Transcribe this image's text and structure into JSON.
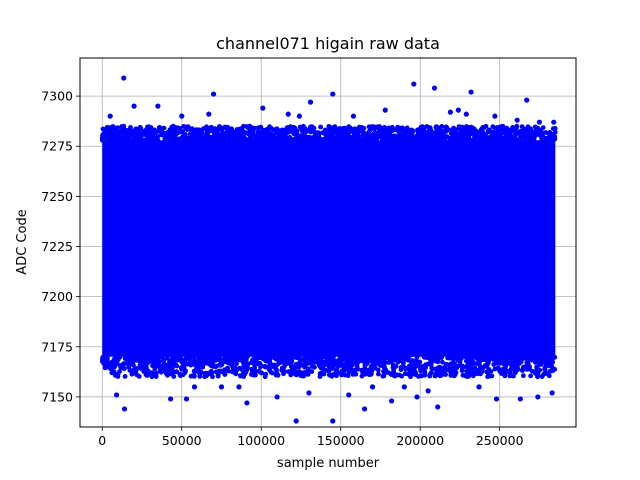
{
  "chart_data": {
    "type": "scatter",
    "title": "channel071 higain raw data",
    "xlabel": "sample number",
    "ylabel": "ADC Code",
    "xlim": [
      -14000,
      298000
    ],
    "ylim": [
      7135,
      7319
    ],
    "x_ticks": [
      0,
      50000,
      100000,
      150000,
      200000,
      250000
    ],
    "y_ticks": [
      7150,
      7175,
      7200,
      7225,
      7250,
      7275,
      7300
    ],
    "grid": true,
    "marker_color": "#0000ff",
    "sample_count": 285000,
    "bulk_band": {
      "x_range": [
        0,
        285000
      ],
      "y_range": [
        7160,
        7285
      ],
      "dense_core": [
        7170,
        7278
      ]
    },
    "series": [
      {
        "points": [
          [
            13500,
            7309
          ],
          [
            70000,
            7301
          ],
          [
            145000,
            7301
          ],
          [
            196000,
            7306
          ],
          [
            209000,
            7304
          ],
          [
            232000,
            7302
          ],
          [
            267000,
            7298
          ],
          [
            131000,
            7297
          ],
          [
            20000,
            7295
          ],
          [
            35000,
            7295
          ],
          [
            101000,
            7294
          ],
          [
            178000,
            7293
          ],
          [
            224000,
            7293
          ],
          [
            219000,
            7292
          ],
          [
            5000,
            7290
          ],
          [
            50000,
            7290
          ],
          [
            67000,
            7291
          ],
          [
            117000,
            7291
          ],
          [
            124000,
            7290
          ],
          [
            158000,
            7290
          ],
          [
            229000,
            7291
          ],
          [
            247000,
            7290
          ],
          [
            261000,
            7288
          ],
          [
            275000,
            7287
          ],
          [
            284000,
            7287
          ],
          [
            14000,
            7144
          ],
          [
            122000,
            7138
          ],
          [
            145000,
            7138
          ],
          [
            165000,
            7144
          ],
          [
            211000,
            7145
          ],
          [
            91000,
            7147
          ],
          [
            9000,
            7151
          ],
          [
            43000,
            7149
          ],
          [
            53000,
            7149
          ],
          [
            110000,
            7150
          ],
          [
            155000,
            7151
          ],
          [
            182000,
            7148
          ],
          [
            198000,
            7150
          ],
          [
            248000,
            7149
          ],
          [
            263000,
            7149
          ],
          [
            274000,
            7150
          ],
          [
            283000,
            7152
          ],
          [
            58000,
            7155
          ],
          [
            75000,
            7155
          ],
          [
            86000,
            7155
          ],
          [
            130000,
            7152
          ],
          [
            170000,
            7155
          ],
          [
            190000,
            7155
          ],
          [
            205000,
            7153
          ],
          [
            237000,
            7155
          ]
        ]
      }
    ]
  }
}
